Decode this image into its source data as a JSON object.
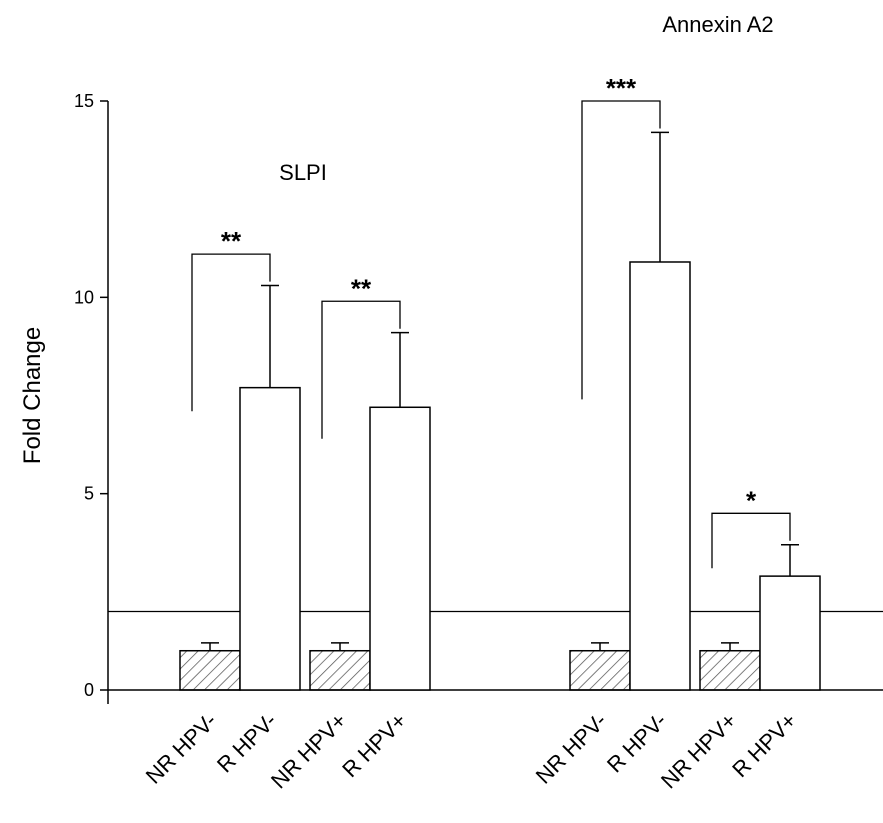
{
  "chart_data": {
    "type": "bar",
    "ylabel": "Fold Change",
    "ylim": [
      0,
      15
    ],
    "yticks": [
      0,
      5,
      10,
      15
    ],
    "threshold_line": 2,
    "groups": [
      {
        "title": "SLPI",
        "bars": [
          {
            "category": "NR HPV-",
            "value": 1.0,
            "error": 0.2,
            "pattern": "hatched"
          },
          {
            "category": "R HPV-",
            "value": 7.7,
            "error": 2.6,
            "pattern": "open"
          },
          {
            "category": "NR HPV+",
            "value": 1.0,
            "error": 0.2,
            "pattern": "hatched"
          },
          {
            "category": "R HPV+",
            "value": 7.2,
            "error": 1.9,
            "pattern": "open"
          }
        ],
        "comparisons": [
          {
            "from": "NR HPV-",
            "to": "R HPV-",
            "label": "**"
          },
          {
            "from": "NR HPV+",
            "to": "R HPV+",
            "label": "**"
          }
        ]
      },
      {
        "title": "Annexin A2",
        "bars": [
          {
            "category": "NR HPV-",
            "value": 1.0,
            "error": 0.2,
            "pattern": "hatched"
          },
          {
            "category": "R HPV-",
            "value": 10.9,
            "error": 3.3,
            "pattern": "open"
          },
          {
            "category": "NR HPV+",
            "value": 1.0,
            "error": 0.2,
            "pattern": "hatched"
          },
          {
            "category": "R HPV+",
            "value": 2.9,
            "error": 0.8,
            "pattern": "open"
          }
        ],
        "comparisons": [
          {
            "from": "NR HPV-",
            "to": "R HPV-",
            "label": "***"
          },
          {
            "from": "NR HPV+",
            "to": "R HPV+",
            "label": "*"
          }
        ]
      }
    ]
  }
}
